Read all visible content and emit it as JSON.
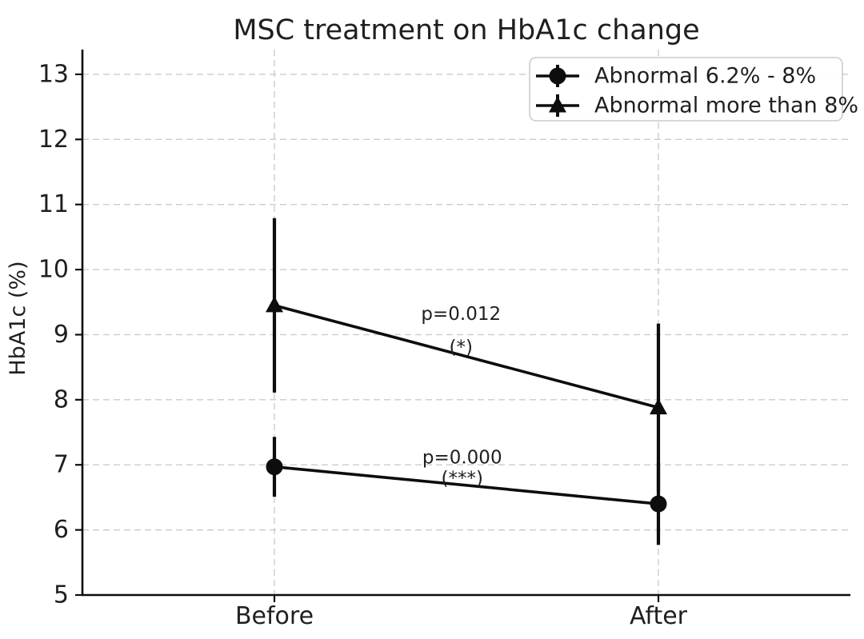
{
  "title": "MSC treatment on HbA1c change",
  "ylabel": "HbA1c (%)",
  "colors": {
    "foreground": "#0d0d0d",
    "text": "#1f1f1f",
    "grid": "#cccccc",
    "legend_border": "#cccccc",
    "background": "#ffffff"
  },
  "chart_data": {
    "type": "line",
    "categories": [
      "Before",
      "After"
    ],
    "series": [
      {
        "name": "Abnormal 6.2% - 8%",
        "marker": "circle",
        "values": [
          6.97,
          6.4
        ],
        "errors": [
          0.46,
          0.63
        ]
      },
      {
        "name": "Abnormal more than 8%",
        "marker": "triangle",
        "values": [
          9.45,
          7.88
        ],
        "errors": [
          1.34,
          1.29
        ]
      }
    ],
    "annotations": [
      {
        "text": "p=0.012",
        "sub": "(*)",
        "x": 0.486,
        "y": 9.31,
        "sub_y": 8.8
      },
      {
        "text": "p=0.000",
        "sub": "(***)",
        "x": 0.489,
        "y": 7.11,
        "sub_y": 6.79
      }
    ],
    "title": "MSC treatment on HbA1c change",
    "xlabel": "",
    "ylabel": "HbA1c (%)",
    "ylim": [
      5,
      13.38
    ],
    "yticks": [
      5,
      6,
      7,
      8,
      9,
      10,
      11,
      12,
      13
    ],
    "grid": true,
    "grid_style": "dashed",
    "legend_position": "upper right"
  }
}
